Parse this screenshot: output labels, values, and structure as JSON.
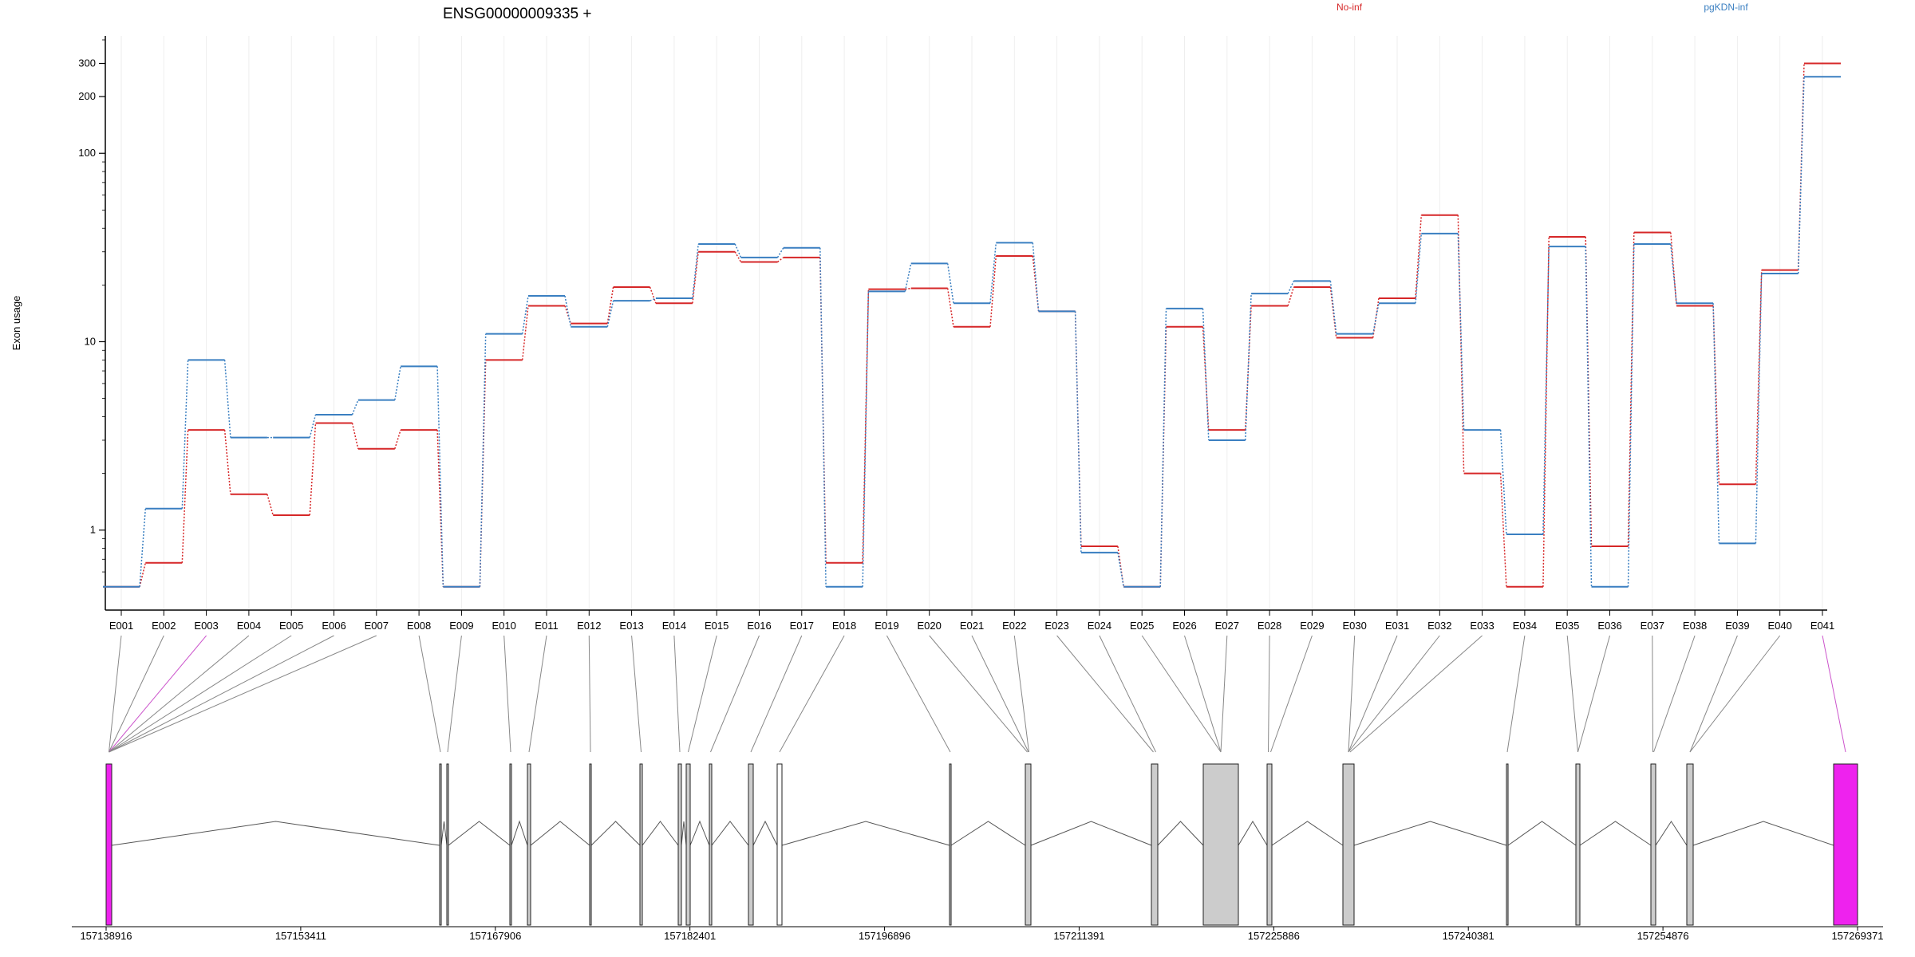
{
  "chart_data": {
    "type": "line",
    "title": "ENSG00000009335 +",
    "ylabel": "Exon usage",
    "yscale": "log",
    "ylim": [
      0.48,
      420
    ],
    "yticks": [
      {
        "value": 1,
        "label": "1"
      },
      {
        "value": 10,
        "label": "10"
      },
      {
        "value": 100,
        "label": "100"
      },
      {
        "value": 200,
        "label": "200"
      },
      {
        "value": 300,
        "label": "300"
      }
    ],
    "categories": [
      "E001",
      "E002",
      "E003",
      "E004",
      "E005",
      "E006",
      "E007",
      "E008",
      "E009",
      "E010",
      "E011",
      "E012",
      "E013",
      "E014",
      "E015",
      "E016",
      "E017",
      "E018",
      "E019",
      "E020",
      "E021",
      "E022",
      "E023",
      "E024",
      "E025",
      "E026",
      "E027",
      "E028",
      "E029",
      "E030",
      "E031",
      "E032",
      "E033",
      "E034",
      "E035",
      "E036",
      "E037",
      "E038",
      "E039",
      "E040",
      "E041"
    ],
    "legend_placement": "top",
    "series": [
      {
        "name": "No-inf",
        "color": "#d62728",
        "values": [
          0.5,
          0.67,
          3.4,
          1.55,
          1.2,
          3.7,
          2.7,
          3.4,
          0.5,
          8.0,
          15.5,
          12.5,
          19.5,
          16.0,
          30.0,
          26.5,
          28.0,
          0.67,
          19.0,
          19.2,
          12.0,
          28.5,
          14.5,
          0.82,
          0.5,
          12.0,
          3.4,
          15.5,
          19.5,
          10.5,
          17.0,
          47.0,
          2.0,
          0.5,
          36.0,
          0.82,
          38.0,
          15.5,
          1.75,
          24.0,
          300.0
        ]
      },
      {
        "name": "pgKDN-inf",
        "color": "#3a7fc1",
        "values": [
          0.5,
          1.3,
          8.0,
          3.1,
          3.1,
          4.1,
          4.9,
          7.4,
          0.5,
          11.0,
          17.5,
          12.0,
          16.5,
          17.0,
          33.0,
          28.0,
          31.5,
          0.5,
          18.5,
          26.0,
          16.0,
          33.5,
          14.5,
          0.76,
          0.5,
          15.0,
          3.0,
          18.0,
          21.0,
          11.0,
          16.0,
          37.5,
          3.4,
          0.95,
          32.0,
          0.5,
          33.0,
          16.0,
          0.85,
          23.0,
          255.0
        ]
      }
    ],
    "gene_model": {
      "axis_labels": [
        "157138916",
        "157153411",
        "157167906",
        "157182401",
        "157196896",
        "157211391",
        "157225886",
        "157240381",
        "157254876",
        "157269371"
      ],
      "colors": {
        "exon_fill": "#cccccc",
        "highlight_fill": "#ee22ee"
      }
    }
  }
}
